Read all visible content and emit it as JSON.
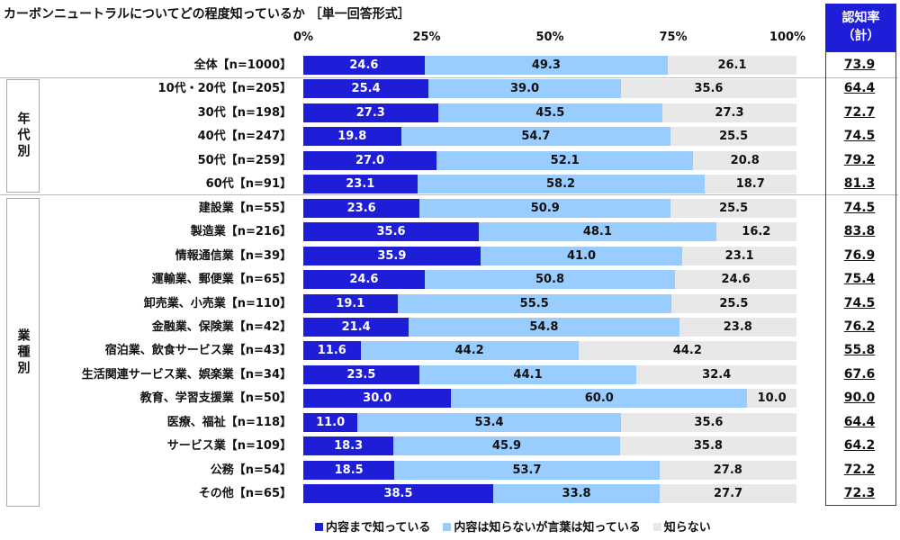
{
  "chart_data": {
    "type": "bar",
    "orientation": "horizontal",
    "stacked": true,
    "title": "カーボンニュートラルについてどの程度知っているか ［単一回答形式］",
    "xlim": [
      0,
      100
    ],
    "x_ticks": [
      "0%",
      "25%",
      "50%",
      "75%",
      "100%"
    ],
    "colors": {
      "detail": "#1e1ed8",
      "word": "#99ccff",
      "unknown": "#e8e8e8",
      "header": "#1e1ed8"
    },
    "legend_position": "bottom",
    "series": [
      {
        "name": "内容まで知っている",
        "key": "detail"
      },
      {
        "name": "内容は知らないが言葉は知っている",
        "key": "word"
      },
      {
        "name": "知らない",
        "key": "unknown"
      }
    ],
    "awareness_header": [
      "認知率",
      "（計）"
    ],
    "groups": [
      {
        "label": "年代別"
      },
      {
        "label": "業種別"
      }
    ],
    "categories": [
      {
        "label": "全体【n=1000】",
        "values": [
          24.6,
          49.3,
          26.1
        ],
        "awareness": "73.9"
      },
      {
        "label": "10代・20代【n=205】",
        "values": [
          25.4,
          39.0,
          35.6
        ],
        "awareness": "64.4"
      },
      {
        "label": "30代【n=198】",
        "values": [
          27.3,
          45.5,
          27.3
        ],
        "awareness": "72.7"
      },
      {
        "label": "40代【n=247】",
        "values": [
          19.8,
          54.7,
          25.5
        ],
        "awareness": "74.5"
      },
      {
        "label": "50代【n=259】",
        "values": [
          27.0,
          52.1,
          20.8
        ],
        "awareness": "79.2"
      },
      {
        "label": "60代【n=91】",
        "values": [
          23.1,
          58.2,
          18.7
        ],
        "awareness": "81.3"
      },
      {
        "label": "建設業【n=55】",
        "values": [
          23.6,
          50.9,
          25.5
        ],
        "awareness": "74.5"
      },
      {
        "label": "製造業【n=216】",
        "values": [
          35.6,
          48.1,
          16.2
        ],
        "awareness": "83.8"
      },
      {
        "label": "情報通信業【n=39】",
        "values": [
          35.9,
          41.0,
          23.1
        ],
        "awareness": "76.9"
      },
      {
        "label": "運輸業、郵便業【n=65】",
        "values": [
          24.6,
          50.8,
          24.6
        ],
        "awareness": "75.4"
      },
      {
        "label": "卸売業、小売業【n=110】",
        "values": [
          19.1,
          55.5,
          25.5
        ],
        "awareness": "74.5"
      },
      {
        "label": "金融業、保険業【n=42】",
        "values": [
          21.4,
          54.8,
          23.8
        ],
        "awareness": "76.2"
      },
      {
        "label": "宿泊業、飲食サービス業【n=43】",
        "values": [
          11.6,
          44.2,
          44.2
        ],
        "awareness": "55.8"
      },
      {
        "label": "生活関連サービス業、娯楽業【n=34】",
        "values": [
          23.5,
          44.1,
          32.4
        ],
        "awareness": "67.6"
      },
      {
        "label": "教育、学習支援業【n=50】",
        "values": [
          30.0,
          60.0,
          10.0
        ],
        "awareness": "90.0"
      },
      {
        "label": "医療、福祉【n=118】",
        "values": [
          11.0,
          53.4,
          35.6
        ],
        "awareness": "64.4"
      },
      {
        "label": "サービス業【n=109】",
        "values": [
          18.3,
          45.9,
          35.8
        ],
        "awareness": "64.2"
      },
      {
        "label": "公務【n=54】",
        "values": [
          18.5,
          53.7,
          27.8
        ],
        "awareness": "72.2"
      },
      {
        "label": "その他【n=65】",
        "values": [
          38.5,
          33.8,
          27.7
        ],
        "awareness": "72.3"
      }
    ]
  }
}
